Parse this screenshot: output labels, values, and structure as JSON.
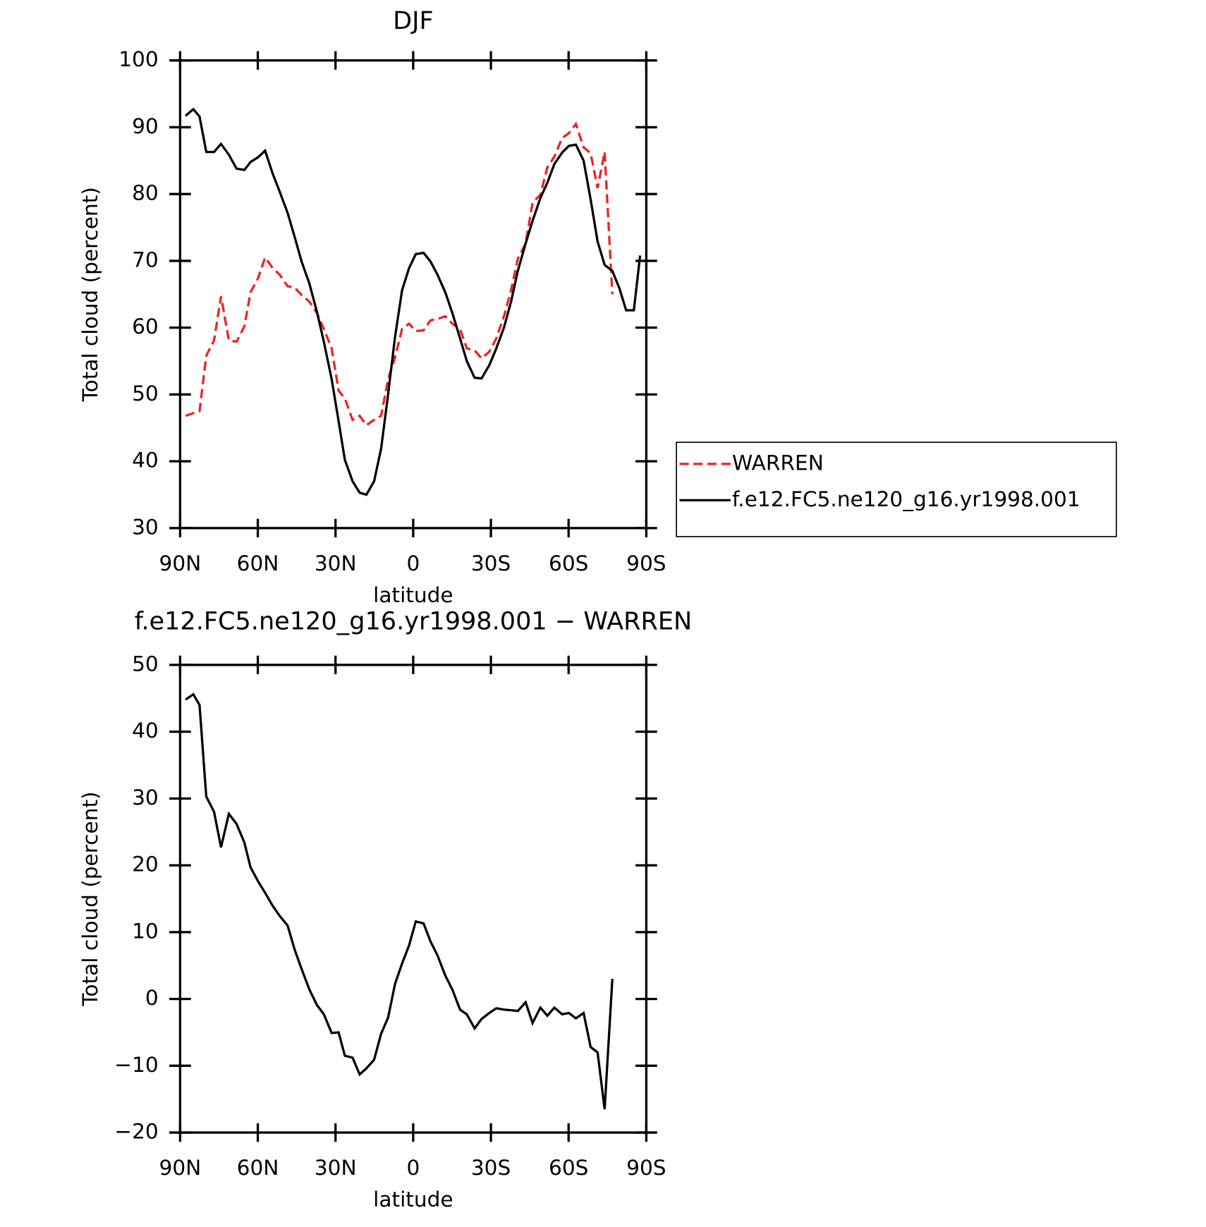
{
  "chart_data": [
    {
      "type": "line",
      "title": "DJF",
      "x_label": "latitude",
      "y_label": "Total cloud (percent)",
      "x": [
        87.9,
        84.9,
        82.5,
        79.9,
        76.9,
        74.2,
        71.2,
        68.2,
        65.2,
        62.8,
        59.9,
        57.2,
        54.2,
        51.5,
        48.5,
        45.8,
        43.1,
        40.1,
        37.2,
        34.5,
        31.5,
        28.8,
        26.4,
        23.4,
        20.7,
        18.1,
        15.1,
        12.4,
        9.7,
        7.0,
        4.3,
        1.6,
        -1.0,
        -4.0,
        -6.7,
        -9.4,
        -12.4,
        -15.1,
        -18.1,
        -20.7,
        -23.7,
        -26.4,
        -29.4,
        -32.1,
        -35.1,
        -37.8,
        -40.4,
        -43.4,
        -46.1,
        -49.1,
        -51.8,
        -54.5,
        -57.5,
        -60.1,
        -62.8,
        -65.8,
        -68.5,
        -71.2,
        -73.9,
        -76.9,
        -79.6,
        -82.2,
        -85.2,
        -87.6
      ],
      "xlim": [
        90,
        -90
      ],
      "xticks": [
        {
          "value": 90,
          "label": "90N"
        },
        {
          "value": 60,
          "label": "60N"
        },
        {
          "value": 30,
          "label": "30N"
        },
        0,
        {
          "value": -30,
          "label": "30S"
        },
        {
          "value": -60,
          "label": "60S"
        },
        {
          "value": -90,
          "label": "90S"
        }
      ],
      "ylim": [
        30,
        100
      ],
      "yticks": [
        30,
        40,
        50,
        60,
        70,
        80,
        90,
        100
      ],
      "legend": "right",
      "series": [
        {
          "name": "WARREN",
          "color": "#ee2222",
          "dashed": true,
          "values": [
            46.8,
            47.2,
            47.5,
            55.8,
            58.1,
            64.7,
            58.1,
            57.9,
            60.2,
            65.3,
            67.4,
            70.5,
            68.9,
            67.9,
            66.2,
            66.0,
            64.9,
            63.9,
            62.2,
            59.8,
            56.9,
            50.6,
            49.4,
            46.2,
            46.8,
            45.4,
            46.2,
            46.8,
            52.3,
            55.6,
            59.8,
            60.6,
            59.5,
            59.6,
            61.1,
            61.3,
            61.7,
            60.6,
            59.8,
            56.9,
            56.6,
            55.4,
            56.4,
            58.4,
            61.8,
            65.6,
            70.3,
            72.6,
            78.7,
            79.9,
            84.0,
            85.6,
            88.4,
            89.1,
            90.5,
            87.0,
            86.1,
            80.9,
            86.3,
            65.0,
            null,
            null,
            null,
            null
          ]
        },
        {
          "name": "f.e12.FC5.ne120_g16.yr1998.001",
          "color": "#000000",
          "dashed": false,
          "values": [
            91.7,
            92.7,
            91.6,
            86.3,
            86.3,
            87.5,
            85.9,
            83.8,
            83.6,
            84.8,
            85.5,
            86.5,
            83.0,
            80.3,
            77.2,
            73.6,
            69.9,
            66.6,
            62.4,
            57.9,
            52.3,
            46.0,
            40.2,
            37.0,
            35.3,
            35.0,
            37.0,
            41.9,
            50.0,
            58.7,
            65.6,
            68.9,
            71.0,
            71.2,
            69.9,
            67.9,
            65.3,
            62.2,
            58.4,
            55.0,
            52.5,
            52.4,
            54.4,
            56.9,
            60.1,
            63.9,
            68.5,
            72.6,
            76.0,
            79.4,
            81.7,
            84.5,
            86.2,
            87.2,
            87.4,
            85.0,
            79.2,
            72.9,
            69.4,
            68.5,
            65.9,
            62.6,
            62.6,
            70.8
          ]
        }
      ]
    },
    {
      "type": "line",
      "title": "f.e12.FC5.ne120_g16.yr1998.001 − WARREN",
      "x_label": "latitude",
      "y_label": "Total cloud (percent)",
      "x": [
        87.9,
        84.9,
        82.5,
        79.9,
        76.9,
        74.2,
        71.2,
        68.2,
        65.2,
        62.8,
        59.9,
        57.2,
        54.2,
        51.5,
        48.5,
        45.8,
        43.1,
        40.1,
        37.2,
        34.5,
        31.5,
        28.8,
        26.4,
        23.4,
        20.7,
        18.1,
        15.1,
        12.4,
        9.7,
        7.0,
        4.3,
        1.6,
        -1.0,
        -4.0,
        -6.7,
        -9.4,
        -12.4,
        -15.1,
        -18.1,
        -20.7,
        -23.7,
        -26.4,
        -29.4,
        -32.1,
        -35.1,
        -37.8,
        -40.4,
        -43.4,
        -46.1,
        -49.1,
        -51.8,
        -54.5,
        -57.5,
        -60.1,
        -62.8,
        -65.8,
        -68.5,
        -71.2,
        -73.9,
        -76.9
      ],
      "xlim": [
        90,
        -90
      ],
      "xticks": [
        {
          "value": 90,
          "label": "90N"
        },
        {
          "value": 60,
          "label": "60N"
        },
        {
          "value": 30,
          "label": "30N"
        },
        0,
        {
          "value": -30,
          "label": "30S"
        },
        {
          "value": -60,
          "label": "60S"
        },
        {
          "value": -90,
          "label": "90S"
        }
      ],
      "ylim": [
        -20,
        50
      ],
      "yticks": [
        {
          "value": -20,
          "label": "−20"
        },
        {
          "value": -10,
          "label": "−10"
        },
        0,
        10,
        20,
        30,
        40,
        50
      ],
      "color": "#000000",
      "values": [
        44.8,
        45.6,
        44.0,
        30.3,
        28.0,
        22.7,
        27.7,
        26.2,
        23.4,
        19.7,
        17.6,
        15.9,
        13.9,
        12.4,
        11.0,
        7.4,
        4.5,
        1.4,
        -0.9,
        -2.3,
        -5.1,
        -5.0,
        -8.5,
        -8.8,
        -11.3,
        -10.4,
        -9.1,
        -5.2,
        -2.8,
        2.3,
        5.3,
        8.0,
        11.6,
        11.3,
        8.6,
        6.5,
        3.5,
        1.4,
        -1.6,
        -2.3,
        -4.4,
        -3.0,
        -2.1,
        -1.4,
        -1.6,
        -1.7,
        -1.8,
        -0.5,
        -3.6,
        -1.3,
        -2.5,
        -1.3,
        -2.3,
        -2.1,
        -2.9,
        -2.1,
        -7.2,
        -8.0,
        -16.5,
        3.0
      ]
    }
  ]
}
